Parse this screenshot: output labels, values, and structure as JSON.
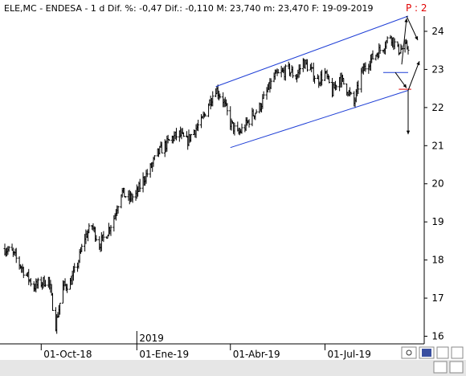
{
  "header": {
    "text": "ELE,MC - ENDESA - 1 d Dif. %: -0,47 Dif.: -0,110 M: 23,740 m: 23,470 F: 19-09-2019",
    "p_label": "P : 2"
  },
  "colors": {
    "background": "#ffffff",
    "bars": "#000000",
    "channel": "#1f3fd6",
    "support": "#e00000",
    "bottom_bar": "#e6e6e6"
  },
  "chart_data": {
    "type": "ohlc",
    "title": "",
    "xlabel": "",
    "ylabel": "",
    "ylim": [
      15.8,
      24.4
    ],
    "grid": false,
    "y_ticks": [
      "16",
      "17",
      "18",
      "19",
      "20",
      "21",
      "22",
      "23",
      "24"
    ],
    "x_ticks": [
      "01-Oct-18",
      "01-Ene-19",
      "01-Abr-19",
      "01-Jul-19"
    ],
    "year_marker": "2019",
    "date_range": [
      "2018-08-27",
      "2019-09-19"
    ],
    "series": [
      {
        "values": [
          {
            "x": "2018-08-27",
            "close": 18.3
          },
          {
            "x": "2018-09-03",
            "close": 18.2
          },
          {
            "x": "2018-09-10",
            "close": 17.9
          },
          {
            "x": "2018-09-17",
            "close": 17.6
          },
          {
            "x": "2018-09-24",
            "close": 17.3
          },
          {
            "x": "2018-10-01",
            "close": 17.4
          },
          {
            "x": "2018-10-08",
            "close": 17.5
          },
          {
            "x": "2018-10-15",
            "close": 16.3
          },
          {
            "x": "2018-10-22",
            "close": 17.3
          },
          {
            "x": "2018-10-29",
            "close": 17.4
          },
          {
            "x": "2018-11-05",
            "close": 17.9
          },
          {
            "x": "2018-11-12",
            "close": 18.6
          },
          {
            "x": "2018-11-19",
            "close": 18.9
          },
          {
            "x": "2018-11-26",
            "close": 18.4
          },
          {
            "x": "2018-12-03",
            "close": 18.7
          },
          {
            "x": "2018-12-10",
            "close": 19.1
          },
          {
            "x": "2018-12-17",
            "close": 19.8
          },
          {
            "x": "2018-12-24",
            "close": 19.6
          },
          {
            "x": "2018-12-31",
            "close": 19.7
          },
          {
            "x": "2019-01-07",
            "close": 20.1
          },
          {
            "x": "2019-01-14",
            "close": 20.4
          },
          {
            "x": "2019-01-21",
            "close": 20.8
          },
          {
            "x": "2019-01-28",
            "close": 21.0
          },
          {
            "x": "2019-02-04",
            "close": 21.2
          },
          {
            "x": "2019-02-11",
            "close": 21.3
          },
          {
            "x": "2019-02-18",
            "close": 21.1
          },
          {
            "x": "2019-02-25",
            "close": 21.4
          },
          {
            "x": "2019-03-04",
            "close": 21.6
          },
          {
            "x": "2019-03-11",
            "close": 22.1
          },
          {
            "x": "2019-03-18",
            "close": 22.5
          },
          {
            "x": "2019-03-25",
            "close": 22.2
          },
          {
            "x": "2019-04-01",
            "close": 21.6
          },
          {
            "x": "2019-04-08",
            "close": 21.3
          },
          {
            "x": "2019-04-15",
            "close": 21.5
          },
          {
            "x": "2019-04-22",
            "close": 21.8
          },
          {
            "x": "2019-04-29",
            "close": 22.0
          },
          {
            "x": "2019-05-06",
            "close": 22.4
          },
          {
            "x": "2019-05-13",
            "close": 22.8
          },
          {
            "x": "2019-05-20",
            "close": 22.9
          },
          {
            "x": "2019-05-27",
            "close": 23.0
          },
          {
            "x": "2019-06-03",
            "close": 22.8
          },
          {
            "x": "2019-06-10",
            "close": 23.2
          },
          {
            "x": "2019-06-17",
            "close": 23.0
          },
          {
            "x": "2019-06-24",
            "close": 22.7
          },
          {
            "x": "2019-07-01",
            "close": 22.9
          },
          {
            "x": "2019-07-08",
            "close": 22.4
          },
          {
            "x": "2019-07-15",
            "close": 22.8
          },
          {
            "x": "2019-07-22",
            "close": 22.5
          },
          {
            "x": "2019-07-29",
            "close": 22.1
          },
          {
            "x": "2019-08-05",
            "close": 22.9
          },
          {
            "x": "2019-08-12",
            "close": 23.2
          },
          {
            "x": "2019-08-19",
            "close": 23.4
          },
          {
            "x": "2019-08-26",
            "close": 23.6
          },
          {
            "x": "2019-09-02",
            "close": 23.9
          },
          {
            "x": "2019-09-09",
            "close": 23.5
          },
          {
            "x": "2019-09-19",
            "close": 23.6
          }
        ]
      }
    ],
    "annotations": {
      "channel_upper": [
        {
          "x": "2019-03-18",
          "y": 22.55
        },
        {
          "x": "2019-09-19",
          "y": 24.4
        }
      ],
      "channel_lower": [
        {
          "x": "2019-04-01",
          "y": 20.95
        },
        {
          "x": "2019-09-19",
          "y": 22.45
        }
      ],
      "support_line": {
        "from": "2019-08-26",
        "to": "2019-09-19",
        "y": 22.92
      },
      "red_line": {
        "from": "2019-09-10",
        "to": "2019-09-22",
        "y": 22.48
      }
    }
  }
}
